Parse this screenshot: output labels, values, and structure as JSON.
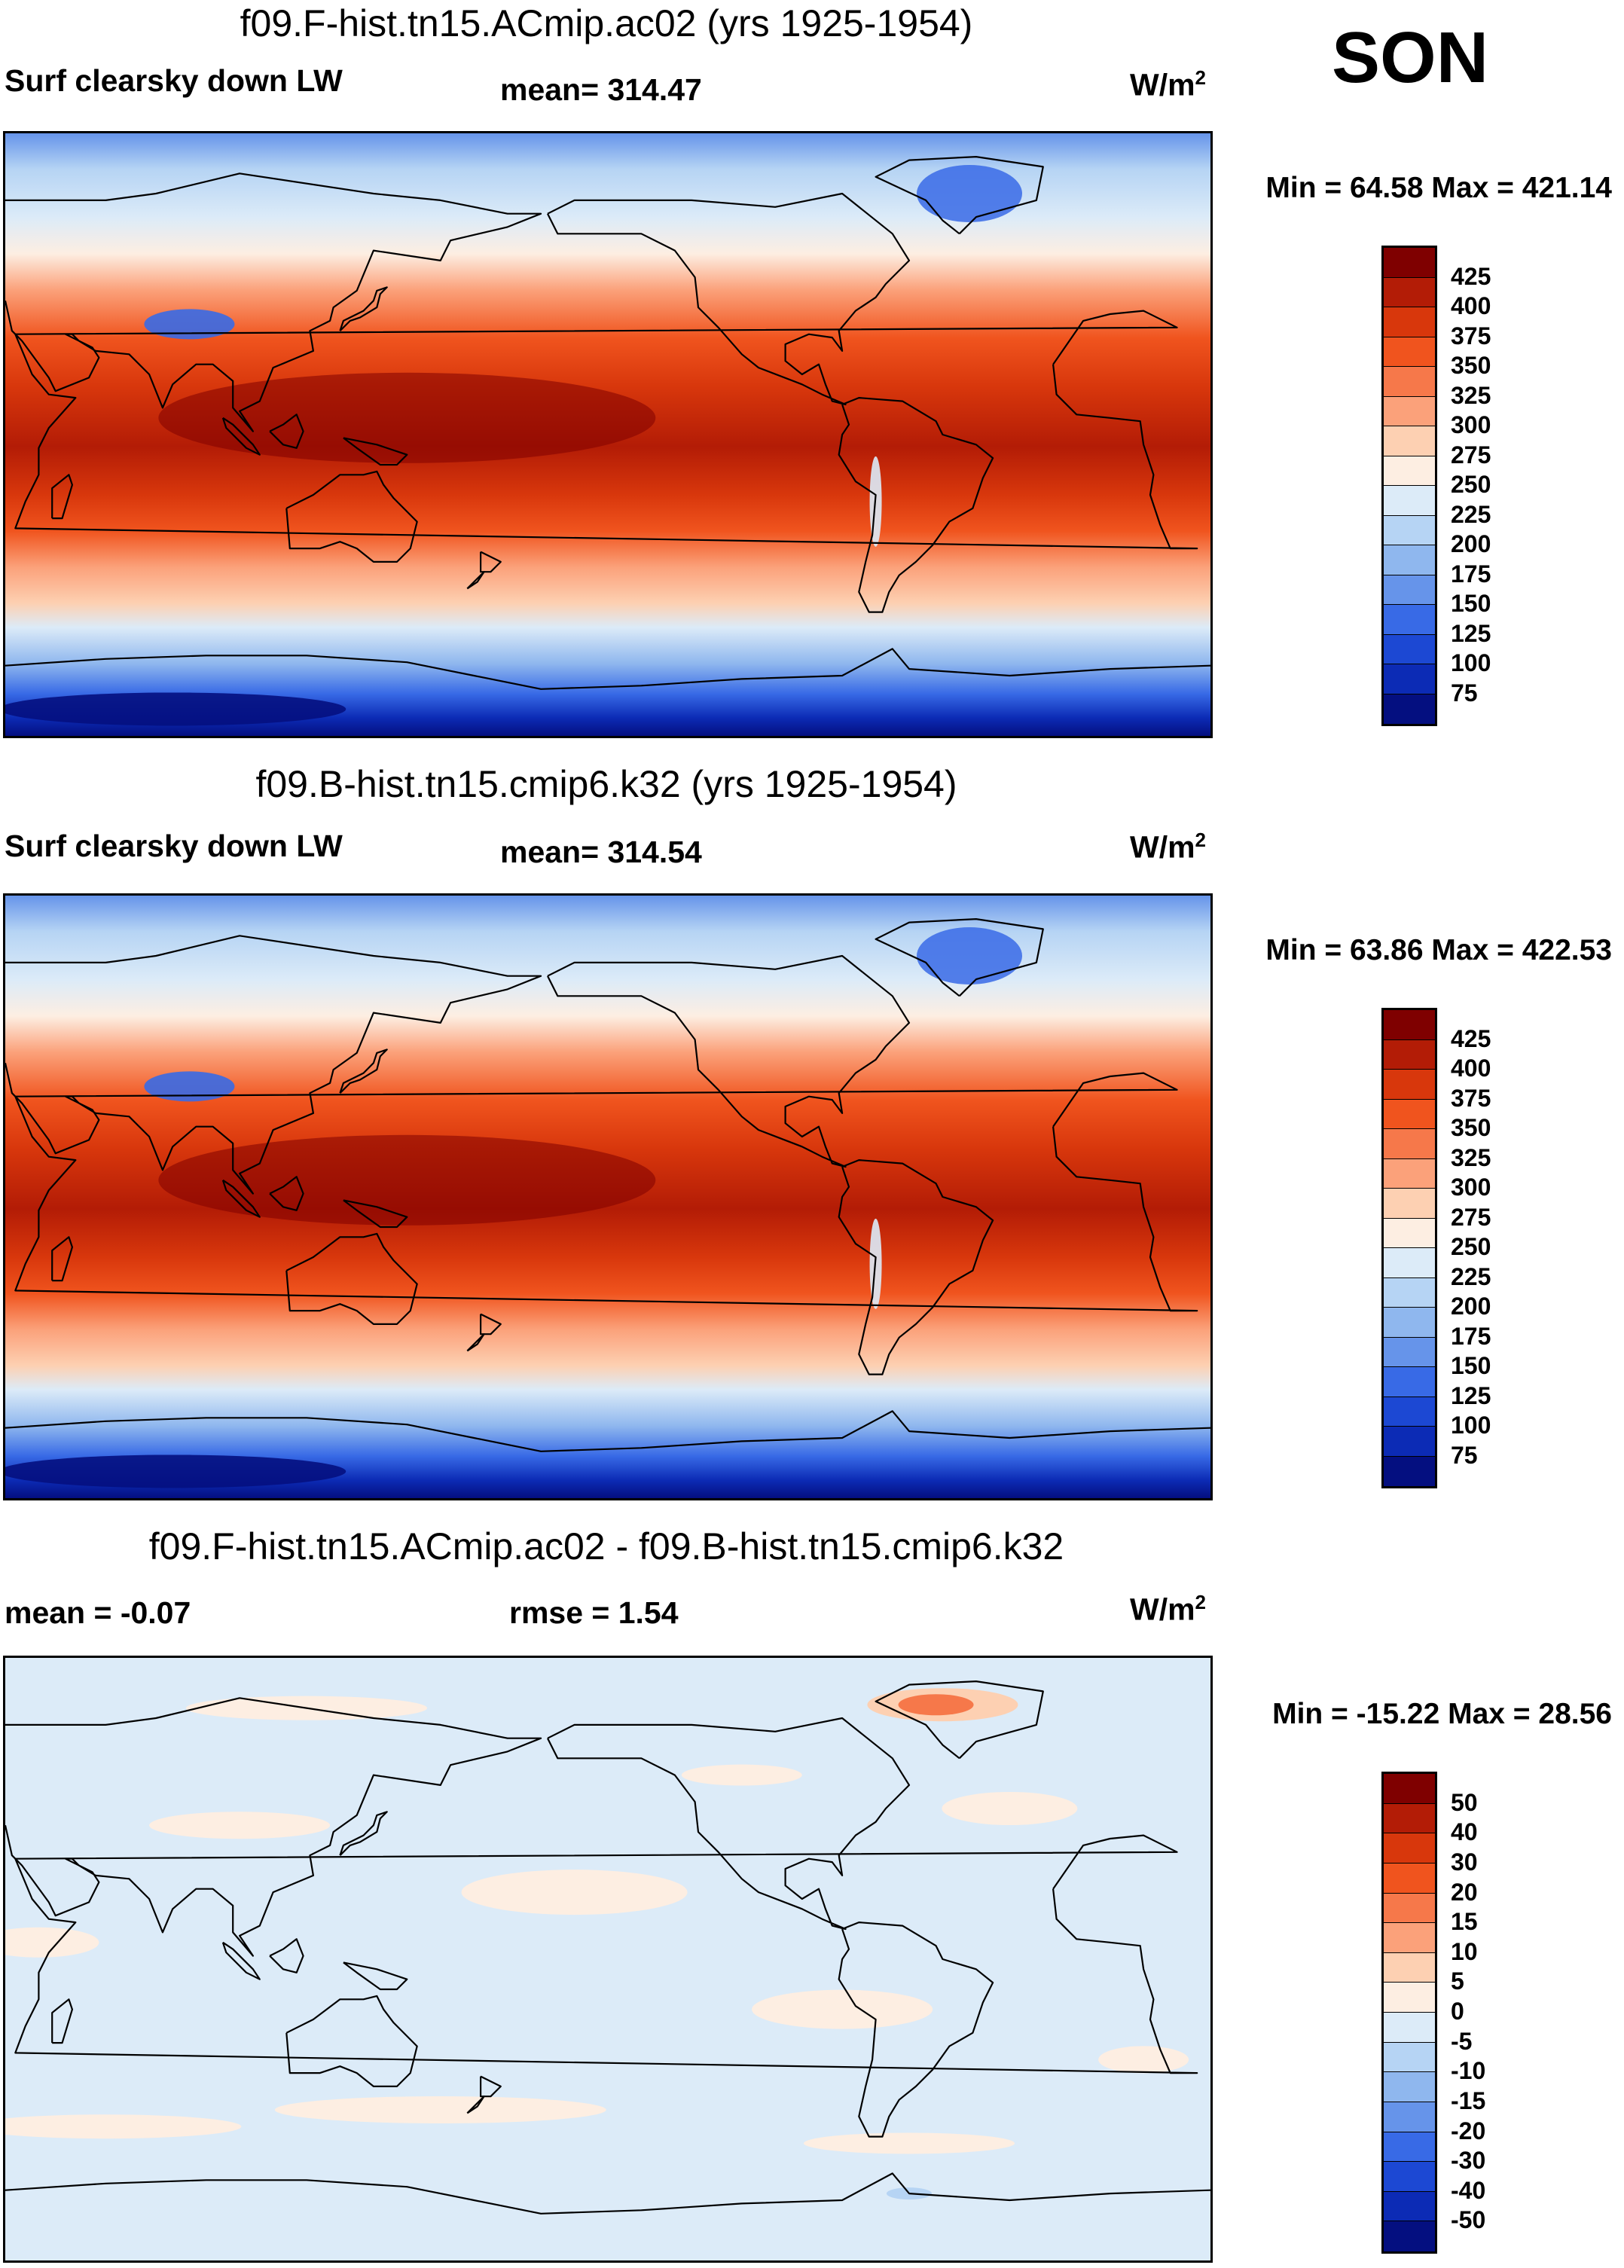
{
  "season": "SON",
  "panels": [
    {
      "title": "f09.F-hist.tn15.ACmip.ac02 (yrs 1925-1954)",
      "left_label": "Surf clearsky down LW",
      "center_label": "mean= 314.47",
      "units": "W/m",
      "units_exp": "2",
      "minmax": "Min =  64.58 Max = 421.14",
      "colorbar": {
        "colors": [
          "#7f0000",
          "#b31c06",
          "#d8370c",
          "#f0541e",
          "#f6784a",
          "#fba17a",
          "#fdd0b2",
          "#fdeee2",
          "#dcebf8",
          "#b6d4f4",
          "#8fb7ee",
          "#6694ea",
          "#386ae6",
          "#1c48d3",
          "#0c2bb5",
          "#040f80"
        ],
        "labels": [
          "425",
          "400",
          "375",
          "350",
          "325",
          "300",
          "275",
          "250",
          "225",
          "200",
          "175",
          "150",
          "125",
          "100",
          "75"
        ]
      },
      "field": "full"
    },
    {
      "title": "f09.B-hist.tn15.cmip6.k32 (yrs 1925-1954)",
      "left_label": "Surf clearsky down LW",
      "center_label": "mean= 314.54",
      "units": "W/m",
      "units_exp": "2",
      "minmax": "Min =  63.86 Max = 422.53",
      "colorbar": {
        "colors": [
          "#7f0000",
          "#b31c06",
          "#d8370c",
          "#f0541e",
          "#f6784a",
          "#fba17a",
          "#fdd0b2",
          "#fdeee2",
          "#dcebf8",
          "#b6d4f4",
          "#8fb7ee",
          "#6694ea",
          "#386ae6",
          "#1c48d3",
          "#0c2bb5",
          "#040f80"
        ],
        "labels": [
          "425",
          "400",
          "375",
          "350",
          "325",
          "300",
          "275",
          "250",
          "225",
          "200",
          "175",
          "150",
          "125",
          "100",
          "75"
        ]
      },
      "field": "full"
    },
    {
      "title": "f09.F-hist.tn15.ACmip.ac02 - f09.B-hist.tn15.cmip6.k32",
      "left_label": "mean =  -0.07",
      "center_label": "rmse =   1.54",
      "units": "W/m",
      "units_exp": "2",
      "minmax": "Min = -15.22 Max =  28.56",
      "colorbar": {
        "colors": [
          "#7f0000",
          "#b31c06",
          "#d8370c",
          "#f0541e",
          "#f6784a",
          "#fba17a",
          "#fdd0b2",
          "#fdeee2",
          "#dcebf8",
          "#b6d4f4",
          "#8fb7ee",
          "#6694ea",
          "#386ae6",
          "#1c48d3",
          "#0c2bb5",
          "#040f80"
        ],
        "labels": [
          "50",
          "40",
          "30",
          "20",
          "15",
          "10",
          "5",
          "0",
          "-5",
          "-10",
          "-15",
          "-20",
          "-30",
          "-40",
          "-50"
        ]
      },
      "field": "diff"
    }
  ]
}
